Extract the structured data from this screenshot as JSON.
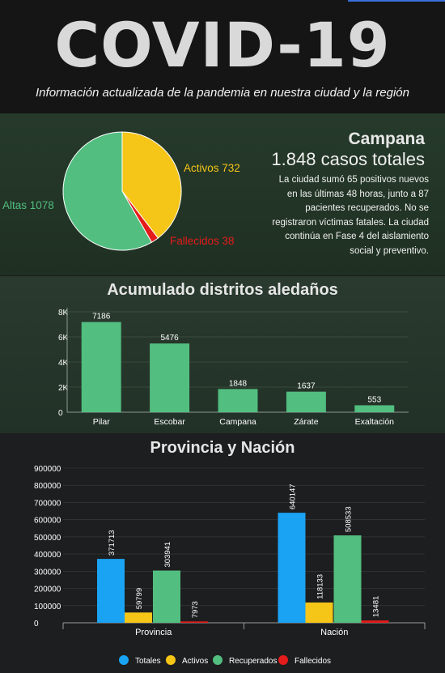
{
  "header": {
    "title": "COVID-19",
    "subtitle": "Información actualizada de la pandemia en nuestra ciudad y la región"
  },
  "campana": {
    "title": "Campana",
    "total": "1.848 casos totales",
    "description": "La ciudad sumó 65 positivos nuevos en las últimas 48 horas, junto a 87 pacientes recuperados. No se registraron víctimas fatales. La ciudad continúa en Fase 4 del aislamiento social y preventivo."
  },
  "colors": {
    "activos": "#f5c518",
    "altas": "#52be80",
    "fallecidos": "#e31b1b",
    "totales": "#1aa3f2",
    "bar_green": "#52be80"
  },
  "chart_data": [
    {
      "type": "pie",
      "labels": [
        "Activos",
        "Altas",
        "Fallecidos"
      ],
      "values": [
        732,
        1078,
        38
      ],
      "display_labels": [
        "Activos 732",
        "Altas 1078",
        "Fallecidos 38"
      ]
    },
    {
      "type": "bar",
      "title": "Acumulado distritos aledaños",
      "categories": [
        "Pilar",
        "Escobar",
        "Campana",
        "Zárate",
        "Exaltación"
      ],
      "values": [
        7186,
        5476,
        1848,
        1637,
        553
      ],
      "yticks": [
        "0",
        "2K",
        "4K",
        "6K",
        "8K"
      ],
      "ylim": [
        0,
        8000
      ]
    },
    {
      "type": "bar",
      "title": "Provincia y Nación",
      "categories": [
        "Provincia",
        "Nación"
      ],
      "series": [
        {
          "name": "Totales",
          "values": [
            371713,
            640147
          ]
        },
        {
          "name": "Activos",
          "values": [
            59799,
            118133
          ]
        },
        {
          "name": "Recuperados",
          "values": [
            303941,
            508533
          ]
        },
        {
          "name": "Fallecidos",
          "values": [
            7973,
            13481
          ]
        }
      ],
      "yticks": [
        "0",
        "100000",
        "200000",
        "300000",
        "400000",
        "500000",
        "600000",
        "700000",
        "800000",
        "900000"
      ],
      "ylim": [
        0,
        900000
      ],
      "legend": "bottom"
    }
  ]
}
